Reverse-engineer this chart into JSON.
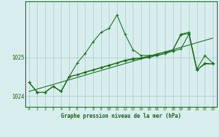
{
  "title": "Graphe pression niveau de la mer (hPa)",
  "x_hours": [
    0,
    1,
    2,
    3,
    4,
    5,
    6,
    7,
    8,
    9,
    10,
    11,
    12,
    13,
    14,
    15,
    16,
    17,
    18,
    19,
    20,
    21,
    22,
    23
  ],
  "series1": [
    1024.35,
    1024.1,
    1024.1,
    1024.25,
    1024.12,
    1024.5,
    1024.85,
    1025.1,
    1025.4,
    1025.65,
    1025.75,
    1026.1,
    1025.6,
    1025.2,
    1025.05,
    1025.05,
    1025.05,
    1025.1,
    1025.2,
    1025.6,
    1025.65,
    1024.7,
    1025.05,
    1024.85
  ],
  "series2": [
    1024.35,
    1024.1,
    1024.1,
    1024.25,
    1024.12,
    1024.5,
    1024.55,
    1024.62,
    1024.68,
    1024.74,
    1024.8,
    1024.86,
    1024.93,
    1024.97,
    1024.99,
    1025.03,
    1025.09,
    1025.14,
    1025.19,
    1025.58,
    1025.62,
    1024.67,
    1024.85,
    1024.83
  ],
  "series3": [
    1024.35,
    1024.1,
    1024.1,
    1024.25,
    1024.12,
    1024.5,
    1024.55,
    1024.61,
    1024.67,
    1024.73,
    1024.79,
    1024.85,
    1024.91,
    1024.95,
    1024.97,
    1025.0,
    1025.05,
    1025.1,
    1025.16,
    1025.22,
    1025.6,
    1024.67,
    1024.83,
    1024.83
  ],
  "series4_linear": [
    1024.12,
    1024.18,
    1024.24,
    1024.3,
    1024.36,
    1024.42,
    1024.48,
    1024.54,
    1024.6,
    1024.66,
    1024.72,
    1024.78,
    1024.84,
    1024.9,
    1024.96,
    1025.02,
    1025.08,
    1025.14,
    1025.2,
    1025.26,
    1025.32,
    1025.38,
    1025.44,
    1025.5
  ],
  "line_color": "#1a6b1a",
  "bg_color": "#d8eeee",
  "grid_color": "#a0c8c8",
  "text_color": "#1a5c1a",
  "ylim_min": 1023.72,
  "ylim_max": 1026.45,
  "yticks": [
    1024,
    1025
  ],
  "marker": "+",
  "marker_size": 3.5,
  "linewidth": 0.8
}
